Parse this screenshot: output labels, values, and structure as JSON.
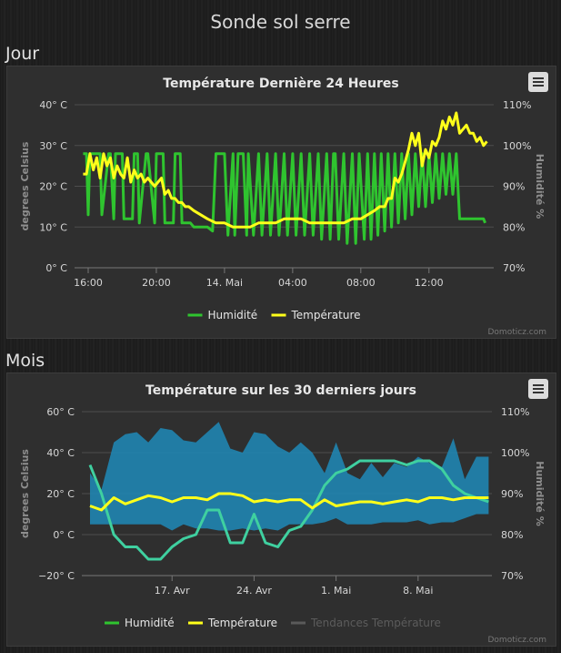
{
  "page": {
    "title": "Sonde sol serre"
  },
  "sections": {
    "day": "Jour",
    "month": "Mois"
  },
  "credits": "Domoticz.com",
  "colors": {
    "humidity": "#2fc42f",
    "temperature": "#ffff1a",
    "trend": "#5a5a5a",
    "range": "#1e8ab8",
    "month_humidity": "#3fd0a0"
  },
  "chart_data": [
    {
      "type": "line",
      "title": "Température Dernière 24 Heures",
      "ylabel": "degrees Celsius",
      "y2label": "Humidité %",
      "ylim": [
        0,
        40
      ],
      "y2lim": [
        70,
        110
      ],
      "yticks": [
        "40° C",
        "30° C",
        "20° C",
        "10° C",
        "0° C"
      ],
      "y2ticks": [
        "110%",
        "100%",
        "90%",
        "80%",
        "70%"
      ],
      "xlim": [
        15.2,
        39.8
      ],
      "xticks": [
        {
          "x": 16,
          "label": "16:00"
        },
        {
          "x": 20,
          "label": "20:00"
        },
        {
          "x": 24,
          "label": "14. Mai"
        },
        {
          "x": 28,
          "label": "04:00"
        },
        {
          "x": 32,
          "label": "08:00"
        },
        {
          "x": 36,
          "label": "12:00"
        }
      ],
      "legend": [
        "Humidité",
        "Température"
      ],
      "series": [
        {
          "name": "Humidité",
          "axis": "right",
          "x": [
            15.7,
            15.9,
            16.0,
            16.1,
            16.3,
            16.4,
            16.7,
            16.8,
            17.2,
            17.3,
            17.5,
            17.6,
            18.0,
            18.1,
            18.6,
            18.7,
            18.9,
            19.0,
            19.4,
            19.5,
            19.9,
            20.0,
            20.4,
            20.5,
            21.0,
            21.1,
            21.4,
            21.5,
            22.0,
            22.2,
            22.8,
            23.0,
            23.3,
            23.5,
            24.0,
            24.2,
            24.5,
            24.6,
            24.8,
            25.1,
            25.3,
            25.4,
            25.7,
            26.0,
            26.2,
            26.5,
            26.7,
            27.0,
            27.2,
            27.5,
            27.7,
            28.0,
            28.2,
            28.5,
            28.7,
            29.0,
            29.2,
            29.5,
            29.7,
            30.0,
            30.2,
            30.4,
            30.5,
            30.7,
            31.0,
            31.2,
            31.5,
            31.7,
            31.9,
            32.2,
            32.4,
            32.6,
            32.8,
            33.0,
            33.2,
            33.4,
            33.6,
            33.8,
            34.0,
            34.2,
            34.4,
            34.6,
            34.8,
            35.0,
            35.2,
            35.4,
            35.6,
            35.8,
            36.0,
            36.2,
            36.4,
            36.6,
            36.8,
            37.0,
            37.2,
            37.4,
            37.6,
            37.8,
            38.0,
            38.2,
            38.4,
            38.6,
            38.8,
            39.0,
            39.2,
            39.3
          ],
          "values": [
            98,
            98,
            83,
            98,
            98,
            98,
            98,
            83,
            98,
            98,
            82,
            98,
            98,
            82,
            82,
            98,
            98,
            81,
            98,
            98,
            81,
            98,
            98,
            81,
            81,
            98,
            98,
            81,
            81,
            80,
            80,
            80,
            79,
            98,
            98,
            78,
            98,
            78,
            98,
            98,
            78,
            98,
            78,
            98,
            78,
            98,
            78,
            98,
            78,
            98,
            78,
            98,
            78,
            98,
            78,
            98,
            78,
            98,
            77,
            98,
            77,
            98,
            98,
            77,
            98,
            76,
            98,
            76,
            98,
            77,
            98,
            77,
            98,
            78,
            98,
            79,
            98,
            80,
            98,
            81,
            98,
            82,
            98,
            83,
            98,
            85,
            98,
            85,
            98,
            86,
            98,
            87,
            98,
            88,
            98,
            88,
            98,
            82,
            82,
            82,
            82,
            82,
            82,
            82,
            82,
            81
          ]
        },
        {
          "name": "Température",
          "axis": "left",
          "x": [
            15.7,
            15.9,
            16.1,
            16.3,
            16.5,
            16.7,
            16.9,
            17.1,
            17.3,
            17.5,
            17.7,
            17.9,
            18.1,
            18.3,
            18.5,
            18.7,
            18.9,
            19.1,
            19.3,
            19.5,
            19.7,
            19.9,
            20.1,
            20.3,
            20.5,
            20.7,
            20.9,
            21.1,
            21.3,
            21.5,
            21.7,
            21.9,
            22.2,
            22.6,
            23.0,
            23.5,
            24.0,
            24.5,
            25.0,
            25.5,
            26.0,
            26.5,
            27.0,
            27.5,
            28.0,
            28.5,
            29.0,
            29.5,
            30.0,
            30.5,
            31.0,
            31.5,
            32.0,
            32.4,
            32.8,
            33.1,
            33.4,
            33.6,
            33.8,
            34.0,
            34.2,
            34.4,
            34.6,
            34.8,
            35.0,
            35.2,
            35.4,
            35.6,
            35.8,
            36.0,
            36.2,
            36.4,
            36.6,
            36.8,
            37.0,
            37.2,
            37.4,
            37.6,
            37.8,
            38.0,
            38.2,
            38.4,
            38.6,
            38.8,
            39.0,
            39.2,
            39.4
          ],
          "values": [
            23,
            23,
            28,
            24,
            27,
            22,
            28,
            25,
            27,
            22,
            25,
            23,
            22,
            27,
            21,
            24,
            22,
            23,
            21,
            22,
            21,
            20,
            21,
            22,
            18,
            19,
            17,
            17,
            16,
            16,
            15,
            15,
            14,
            13,
            12,
            11,
            11,
            10,
            10,
            10,
            11,
            11,
            11,
            12,
            12,
            12,
            11,
            11,
            11,
            11,
            11,
            12,
            12,
            13,
            14,
            15,
            15,
            17,
            17,
            22,
            21,
            23,
            26,
            29,
            33,
            30,
            33,
            25,
            29,
            27,
            31,
            30,
            32,
            36,
            34,
            37,
            35,
            38,
            33,
            34,
            35,
            33,
            33,
            31,
            32,
            30,
            31
          ]
        }
      ]
    },
    {
      "type": "line",
      "title": "Température sur les 30 derniers jours",
      "ylabel": "degrees Celsius",
      "y2label": "Humidité %",
      "ylim": [
        -20,
        60
      ],
      "y2lim": [
        70,
        110
      ],
      "yticks": [
        "60° C",
        "40° C",
        "20° C",
        "0° C",
        "−20° C"
      ],
      "y2ticks": [
        "110%",
        "100%",
        "90%",
        "80%",
        "70%"
      ],
      "xlim": [
        12.9,
        17.9
      ],
      "xticks": [
        {
          "x": 14,
          "label": "17. Avr"
        },
        {
          "x": 15,
          "label": "24. Avr"
        },
        {
          "x": 16,
          "label": "1. Mai"
        },
        {
          "x": 17,
          "label": "8. Mai"
        }
      ],
      "legend": [
        "Humidité",
        "Température",
        "Tendances Température"
      ],
      "series": [
        {
          "name": "Température range",
          "kind": "arearange",
          "axis": "left",
          "x": [
            13.0,
            13.14,
            13.29,
            13.43,
            13.57,
            13.71,
            13.86,
            14.0,
            14.14,
            14.29,
            14.43,
            14.57,
            14.71,
            14.86,
            15.0,
            15.14,
            15.29,
            15.43,
            15.57,
            15.71,
            15.86,
            16.0,
            16.14,
            16.29,
            16.43,
            16.57,
            16.71,
            16.86,
            17.0,
            17.14,
            17.29,
            17.43,
            17.57,
            17.71,
            17.86
          ],
          "low": [
            5,
            5,
            5,
            5,
            5,
            5,
            5,
            2,
            5,
            3,
            3,
            2,
            2,
            3,
            2,
            3,
            2,
            5,
            5,
            5,
            6,
            8,
            5,
            5,
            5,
            6,
            6,
            6,
            7,
            5,
            6,
            6,
            8,
            10,
            10
          ],
          "high": [
            30,
            22,
            45,
            49,
            50,
            45,
            52,
            51,
            46,
            45,
            50,
            55,
            42,
            40,
            50,
            49,
            43,
            40,
            45,
            40,
            30,
            45,
            30,
            27,
            35,
            28,
            35,
            33,
            38,
            35,
            33,
            47,
            27,
            38,
            38
          ]
        },
        {
          "name": "Humidité",
          "axis": "right",
          "x": [
            13.0,
            13.14,
            13.29,
            13.43,
            13.57,
            13.71,
            13.86,
            14.0,
            14.14,
            14.29,
            14.43,
            14.57,
            14.71,
            14.86,
            15.0,
            15.14,
            15.29,
            15.43,
            15.57,
            15.71,
            15.86,
            16.0,
            16.14,
            16.29,
            16.43,
            16.57,
            16.71,
            16.86,
            17.0,
            17.14,
            17.29,
            17.43,
            17.57,
            17.71,
            17.86
          ],
          "values": [
            97,
            90,
            80,
            77,
            77,
            74,
            74,
            77,
            79,
            80,
            86,
            86,
            78,
            78,
            85,
            78,
            77,
            81,
            82,
            86,
            92,
            95,
            96,
            98,
            98,
            98,
            98,
            97,
            98,
            98,
            96,
            92,
            90,
            89,
            88
          ]
        },
        {
          "name": "Température",
          "axis": "left",
          "x": [
            13.0,
            13.14,
            13.29,
            13.43,
            13.57,
            13.71,
            13.86,
            14.0,
            14.14,
            14.29,
            14.43,
            14.57,
            14.71,
            14.86,
            15.0,
            15.14,
            15.29,
            15.43,
            15.57,
            15.71,
            15.86,
            16.0,
            16.14,
            16.29,
            16.43,
            16.57,
            16.71,
            16.86,
            17.0,
            17.14,
            17.29,
            17.43,
            17.57,
            17.71,
            17.86
          ],
          "values": [
            14,
            12,
            18,
            15,
            17,
            19,
            18,
            16,
            18,
            18,
            17,
            20,
            20,
            19,
            16,
            17,
            16,
            17,
            17,
            13,
            17,
            14,
            15,
            16,
            16,
            15,
            16,
            17,
            16,
            18,
            18,
            17,
            18,
            18,
            18
          ]
        }
      ]
    }
  ]
}
